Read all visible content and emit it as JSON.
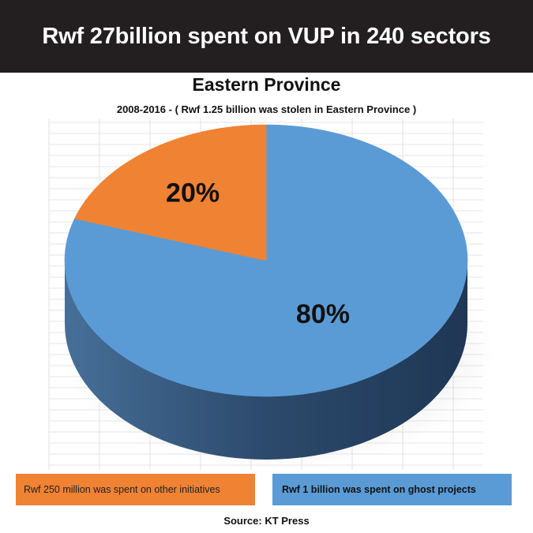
{
  "banner": {
    "title": "Rwf 27billion spent on VUP in 240 sectors"
  },
  "chart_data": {
    "type": "pie",
    "title": "Eastern Province",
    "subtitle": "2008-2016 - ( Rwf 1.25 billion was stolen in Eastern Province )",
    "slices": [
      {
        "label": "Rwf 250 million was spent on other initiatives",
        "value": 20,
        "display": "20%",
        "color": "#f08233"
      },
      {
        "label": "Rwf 1 billion was spent on ghost projects",
        "value": 80,
        "display": "80%",
        "color": "#5b9bd5"
      }
    ],
    "grid": true,
    "legend_position": "bottom"
  },
  "legend": {
    "items": [
      {
        "label": "Rwf 250 million was spent on other initiatives",
        "color": "#f08233"
      },
      {
        "label": "Rwf 1 billion was spent on ghost projects",
        "color": "#5b9bd5"
      }
    ]
  },
  "source": "Source: KT Press"
}
